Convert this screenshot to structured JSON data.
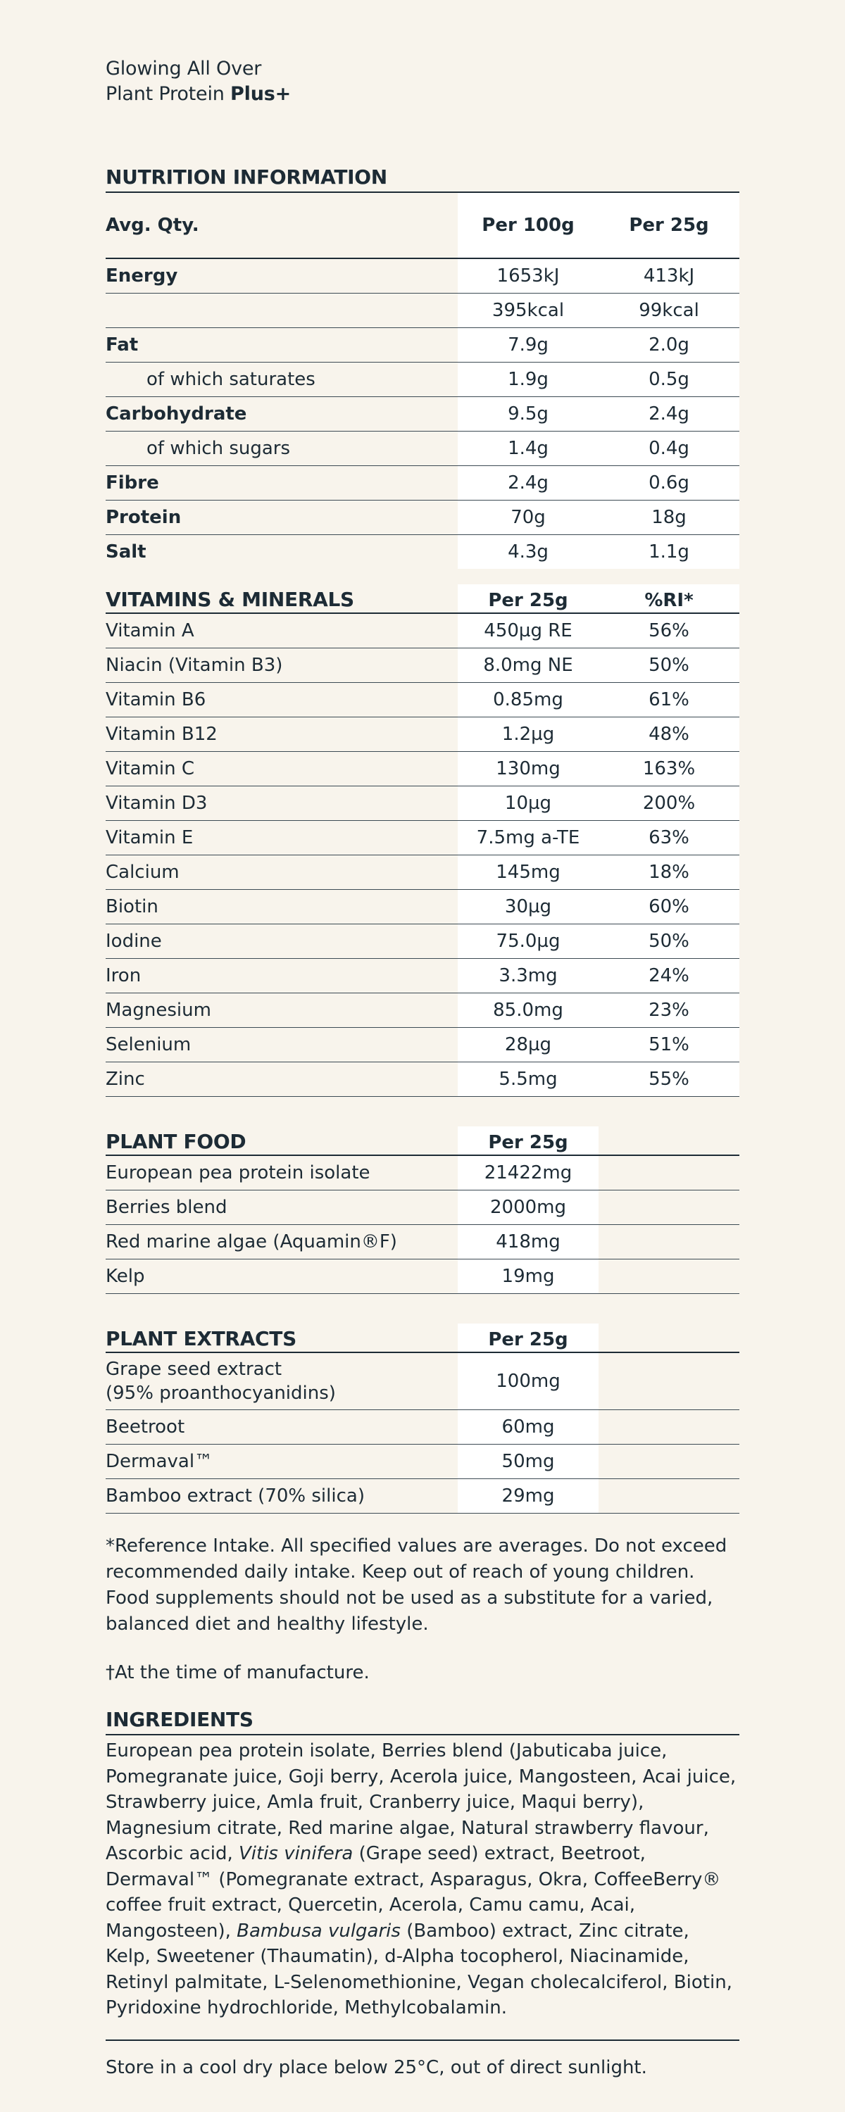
{
  "product": {
    "line1": "Glowing All Over",
    "line2_prefix": "Plant Protein ",
    "line2_bold": "Plus+"
  },
  "nutrition": {
    "title": "NUTRITION INFORMATION",
    "header": {
      "label": "Avg. Qty.",
      "col_a": "Per 100g",
      "col_b": "Per 25g"
    },
    "rows": [
      {
        "label": "Energy",
        "a": "1653kJ",
        "b": "413kJ"
      },
      {
        "label": "",
        "a": "395kcal",
        "b": "99kcal"
      },
      {
        "label": "Fat",
        "a": "7.9g",
        "b": "2.0g"
      },
      {
        "label": "of which saturates",
        "a": "1.9g",
        "b": "0.5g"
      },
      {
        "label": "Carbohydrate",
        "a": "9.5g",
        "b": "2.4g"
      },
      {
        "label": "of which sugars",
        "a": "1.4g",
        "b": "0.4g"
      },
      {
        "label": "Fibre",
        "a": "2.4g",
        "b": "0.6g"
      },
      {
        "label": "Protein",
        "a": "70g",
        "b": "18g"
      },
      {
        "label": "Salt",
        "a": "4.3g",
        "b": "1.1g"
      }
    ]
  },
  "vitamins": {
    "title": "VITAMINS & MINERALS",
    "col_a": "Per 25g",
    "col_b": "%RI*",
    "rows": [
      {
        "label": "Vitamin A",
        "a": "450µg RE",
        "b": "56%"
      },
      {
        "label": "Niacin (Vitamin B3)",
        "a": "8.0mg NE",
        "b": "50%"
      },
      {
        "label": "Vitamin B6",
        "a": "0.85mg",
        "b": "61%"
      },
      {
        "label": "Vitamin B12",
        "a": "1.2µg",
        "b": "48%"
      },
      {
        "label": "Vitamin C",
        "a": "130mg",
        "b": "163%"
      },
      {
        "label": "Vitamin D3",
        "a": "10µg",
        "b": "200%"
      },
      {
        "label": "Vitamin E",
        "a": "7.5mg a-TE",
        "b": "63%"
      },
      {
        "label": "Calcium",
        "a": "145mg",
        "b": "18%"
      },
      {
        "label": "Biotin",
        "a": "30µg",
        "b": "60%"
      },
      {
        "label": "Iodine",
        "a": "75.0µg",
        "b": "50%"
      },
      {
        "label": "Iron",
        "a": "3.3mg",
        "b": "24%"
      },
      {
        "label": "Magnesium",
        "a": "85.0mg",
        "b": "23%"
      },
      {
        "label": "Selenium",
        "a": "28µg",
        "b": "51%"
      },
      {
        "label": "Zinc",
        "a": "5.5mg",
        "b": "55%"
      }
    ]
  },
  "plant_food": {
    "title": "PLANT FOOD",
    "col_a": "Per 25g",
    "rows": [
      {
        "label": "European pea protein isolate",
        "a": "21422mg"
      },
      {
        "label": "Berries blend",
        "a": "2000mg"
      },
      {
        "label": "Red marine algae (Aquamin®F)",
        "a": "418mg"
      },
      {
        "label": "Kelp",
        "a": "19mg"
      }
    ]
  },
  "plant_extracts": {
    "title": "PLANT EXTRACTS",
    "col_a": "Per 25g",
    "rows": [
      {
        "label": "Grape seed extract",
        "label2": "(95% proanthocyanidins)",
        "a": "100mg"
      },
      {
        "label": "Beetroot",
        "a": "60mg"
      },
      {
        "label": "Dermaval™",
        "a": "50mg"
      },
      {
        "label": "Bamboo extract (70% silica)",
        "a": "29mg"
      }
    ]
  },
  "footnote": "*Reference Intake. All specified values are averages. Do not exceed recommended daily intake. Keep out of reach of young children. Food supplements should not be used as a substitute for a varied, balanced diet and healthy lifestyle.",
  "dagger_note": "†At the time of manufacture.",
  "ingredients": {
    "title": "INGREDIENTS",
    "part1": "European pea protein isolate, Berries blend (Jabuticaba juice, Pomegranate juice, Goji berry, Acerola juice, Mangosteen, Acai juice, Strawberry juice, Amla fruit, Cranberry juice, Maqui berry), Magnesium citrate, Red marine algae, Natural strawberry flavour, Ascorbic acid, ",
    "italic1": "Vitis vinifera",
    "part2": " (Grape seed) extract, Beetroot, Dermaval™ (Pomegranate extract, Asparagus, Okra, CoffeeBerry® coffee fruit extract, Quercetin, Acerola, Camu camu, Acai, Mangosteen), ",
    "italic2": "Bambusa vulgaris",
    "part3": " (Bamboo) extract, Zinc citrate, Kelp, Sweetener (Thaumatin), d-Alpha tocopherol, Niacinamide, Retinyl palmitate, L-Selenomethionine, Vegan cholecalciferol, Biotin, Pyridoxine hydrochloride, Methylcobalamin."
  },
  "storage": "Store in a cool dry place below 25°C, out of direct sunlight."
}
